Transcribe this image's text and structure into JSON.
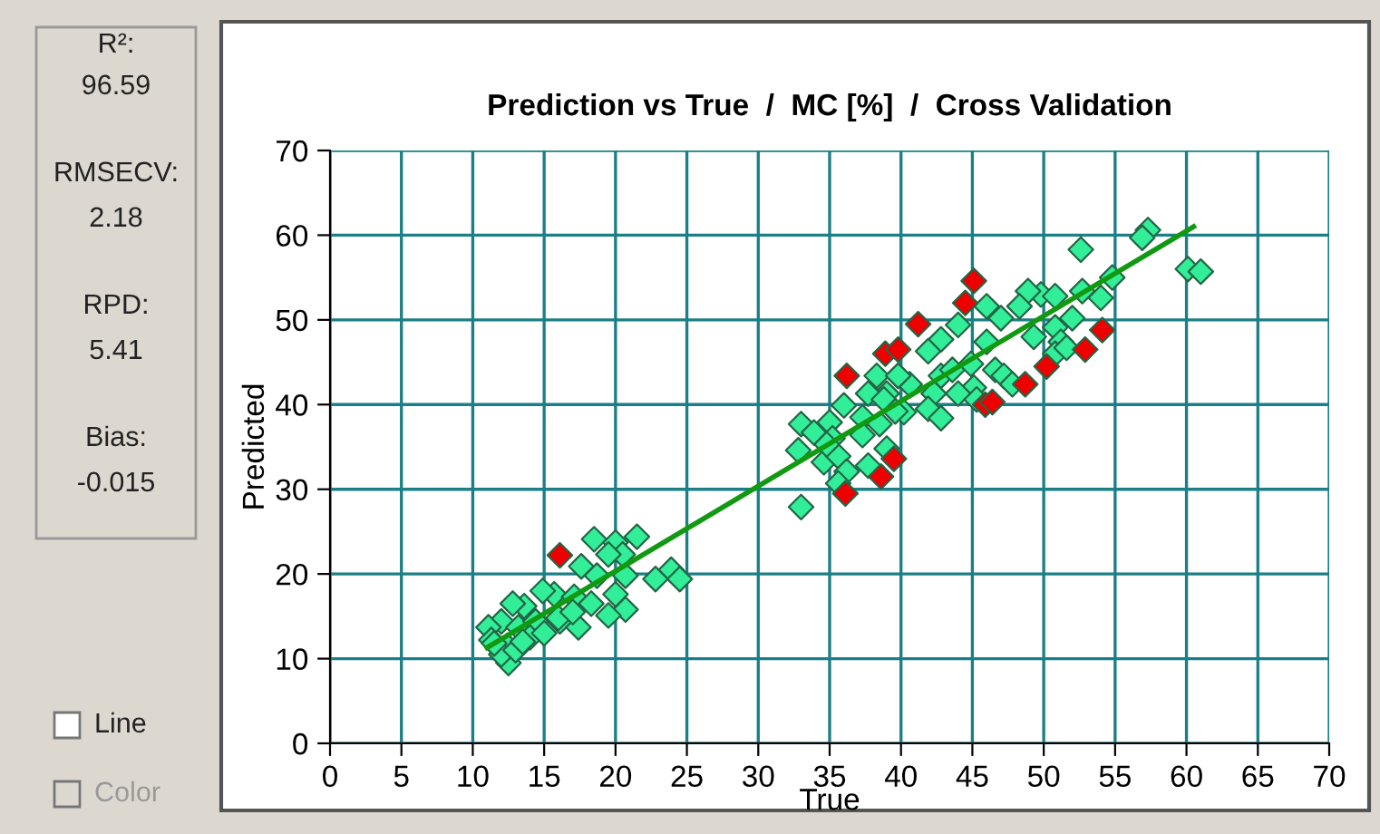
{
  "chart_data": {
    "type": "scatter",
    "title": "Prediction vs True  /  MC [%]  /  Cross Validation",
    "xlabel": "True",
    "ylabel": "Predicted",
    "annotations": [
      "R²:",
      "96.59",
      "RMSECV:",
      "2.18",
      "RPD:",
      "5.41",
      "Bias:",
      "-0.015",
      "Line",
      "Color"
    ],
    "xlim": [
      0,
      70
    ],
    "ylim": [
      0,
      70
    ],
    "xticks": [
      0,
      5,
      10,
      15,
      20,
      25,
      30,
      35,
      40,
      45,
      50,
      55,
      60,
      65,
      70
    ],
    "yticks": [
      0,
      10,
      20,
      30,
      40,
      50,
      60,
      70
    ],
    "grid": true,
    "legend": false,
    "marker": "diamond",
    "series": [
      {
        "color": "#33ee99",
        "x": [
          57.3,
          56.9,
          52.6,
          60.1,
          61,
          54.8,
          54,
          52.7,
          49.8,
          48.9,
          50.8,
          48.3,
          46,
          47,
          44,
          52,
          49.3,
          46,
          50.8,
          51.2,
          50.8,
          51.6,
          42.8,
          41.9,
          42.8,
          43.6,
          44.9,
          46.6,
          47.2,
          47.8,
          45.1,
          44,
          42.3,
          40.6,
          39.8,
          39,
          40.2,
          41.9,
          42.8,
          45.3,
          33,
          33,
          32.8,
          33.9,
          35,
          36,
          34.6,
          35.6,
          36.2,
          35.6,
          37.3,
          38.3,
          37.7,
          38.8,
          39.8,
          39.6,
          38.5,
          37.7,
          39,
          37.3,
          35.2,
          34.8,
          18.5,
          20,
          21.5,
          20.5,
          19.5,
          17.6,
          18.7,
          20.7,
          22.8,
          23.9,
          24.5,
          15.7,
          14.9,
          17.1,
          18.3,
          20,
          20.7,
          19.5,
          16.1,
          17.4,
          13.6,
          12.8,
          12,
          11.1,
          13.2,
          14.4,
          11.3,
          12.4,
          12.5,
          12,
          13,
          11.5,
          14,
          15,
          13.5,
          16,
          17
        ],
        "values": [
          60.6,
          59.7,
          58.3,
          56,
          55.7,
          55,
          52.6,
          53.4,
          53,
          53.4,
          52.8,
          51.6,
          51.6,
          50.2,
          49.4,
          50.2,
          48,
          47.4,
          49.1,
          47.4,
          46,
          46.7,
          47.7,
          46.3,
          43.4,
          44.1,
          44.8,
          44.1,
          43.4,
          42.4,
          42,
          41.3,
          41.3,
          42.4,
          43.4,
          41.3,
          39.1,
          39.5,
          38.4,
          40.6,
          27.9,
          37.7,
          34.6,
          36.7,
          37.9,
          39.9,
          33.2,
          33.9,
          32.1,
          30.7,
          38.5,
          43.4,
          41.3,
          40.6,
          43.4,
          39.2,
          37.7,
          32.8,
          34.8,
          36.4,
          36,
          35.3,
          24.1,
          23.7,
          24.4,
          22.3,
          22.3,
          20.9,
          19.8,
          19.8,
          19.4,
          20.5,
          19.4,
          17.6,
          18,
          17.3,
          16.5,
          17.6,
          15.8,
          15.1,
          14.4,
          13.7,
          16.2,
          16.5,
          14.4,
          13.7,
          13.7,
          14.4,
          12.2,
          11.5,
          9.5,
          10.5,
          11,
          11.8,
          12.5,
          13,
          12,
          14.8,
          15.5
        ]
      },
      {
        "color": "#ee0000",
        "x": [
          16.1,
          36.2,
          38.9,
          39.8,
          39.5,
          38.6,
          36.1,
          45.1,
          44.5,
          41.2,
          54.1,
          52.9,
          50.2,
          48.7,
          45.9,
          46.4
        ],
        "values": [
          22.2,
          43.4,
          46,
          46.5,
          33.6,
          31.5,
          29.5,
          54.6,
          52,
          49.5,
          48.8,
          46.5,
          44.5,
          42.4,
          40,
          40.3
        ]
      },
      {
        "type": "line",
        "marker": "none",
        "color": "#119911",
        "x": [
          11,
          60.5
        ],
        "values": [
          11.3,
          61.0
        ]
      }
    ]
  }
}
